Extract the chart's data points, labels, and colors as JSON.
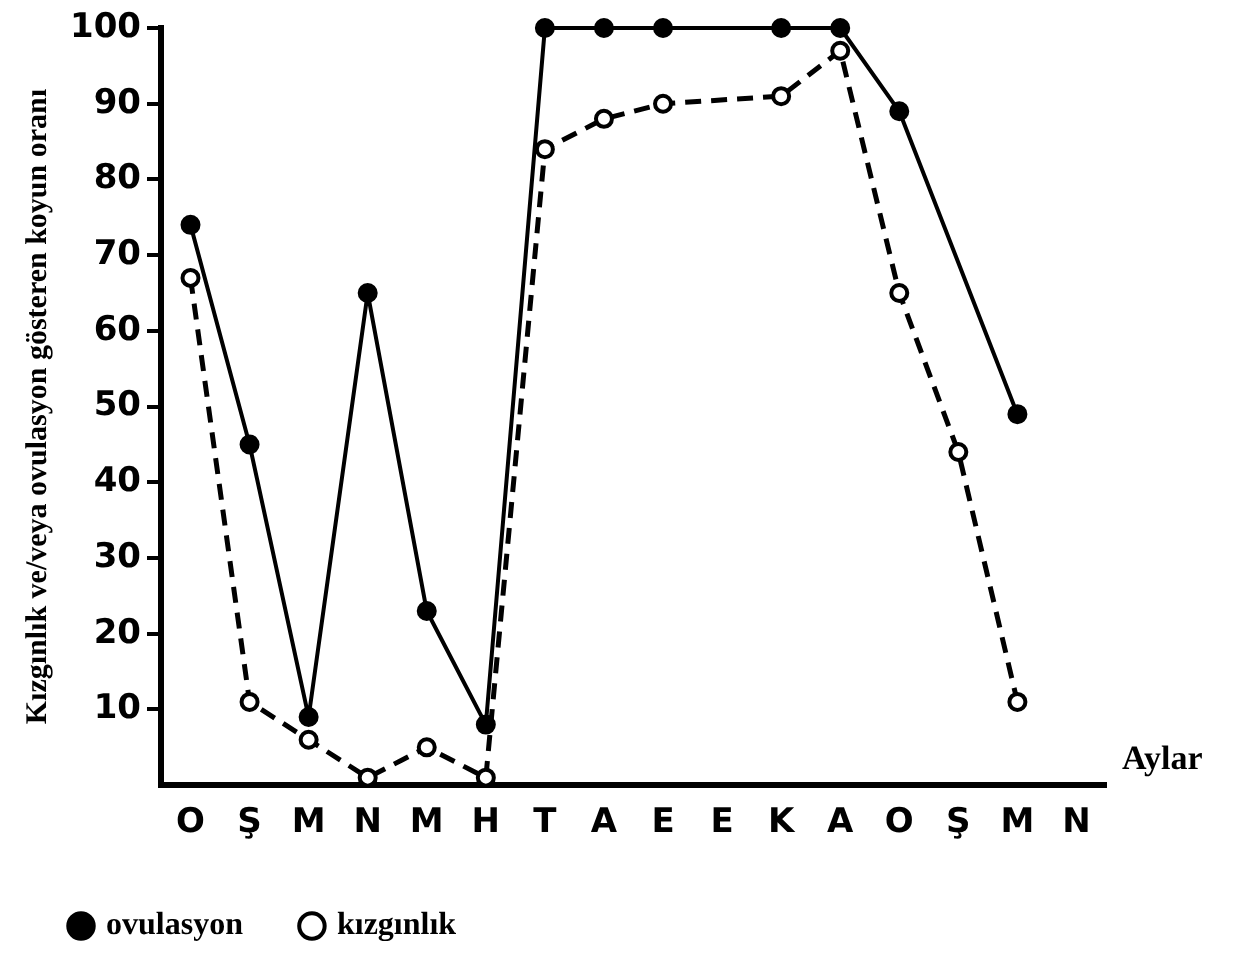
{
  "chart_data": {
    "type": "line",
    "ylabel": "Kızgınlık ve/veya ovulasyon gösteren koyun oranı",
    "xlabel": "Aylar",
    "categories": [
      "O",
      "Ş",
      "M",
      "N",
      "M",
      "H",
      "T",
      "A",
      "E",
      "E",
      "K",
      "A",
      "O",
      "Ş",
      "M",
      "N"
    ],
    "ylim": [
      0,
      100
    ],
    "yticks": [
      10,
      20,
      30,
      40,
      50,
      60,
      70,
      80,
      90,
      100
    ],
    "grid": false,
    "legend": "bottom",
    "marker": "circle",
    "series": [
      {
        "name": "ovulasyon",
        "color": "#000000",
        "line_style": "solid",
        "values": [
          74,
          45,
          9,
          65,
          23,
          8,
          100,
          100,
          100,
          null,
          100,
          100,
          89,
          null,
          49,
          null
        ]
      },
      {
        "name": "kızgınlık",
        "color": "#000000",
        "line_style": "dashed",
        "values": [
          67,
          11,
          6,
          1,
          5,
          1,
          84,
          88,
          90,
          null,
          91,
          97,
          65,
          44,
          11,
          null
        ]
      }
    ]
  }
}
